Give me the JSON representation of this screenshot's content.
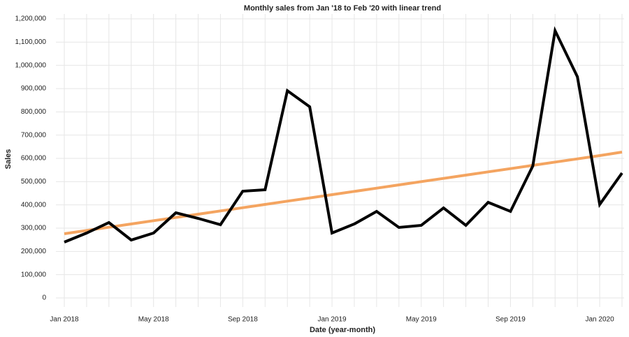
{
  "chart_data": {
    "type": "line",
    "title": "Monthly sales from Jan '18 to Feb '20 with linear trend",
    "xlabel": "Date (year-month)",
    "ylabel": "Sales",
    "x": [
      "2018-01",
      "2018-02",
      "2018-03",
      "2018-04",
      "2018-05",
      "2018-06",
      "2018-07",
      "2018-08",
      "2018-09",
      "2018-10",
      "2018-11",
      "2018-12",
      "2019-01",
      "2019-02",
      "2019-03",
      "2019-04",
      "2019-05",
      "2019-06",
      "2019-07",
      "2019-08",
      "2019-09",
      "2019-10",
      "2019-11",
      "2019-12",
      "2020-01",
      "2020-02"
    ],
    "series": [
      {
        "color": "#000000",
        "values": [
          240000,
          279000,
          324000,
          249000,
          279000,
          366000,
          342000,
          315000,
          459000,
          465000,
          891000,
          822000,
          279000,
          318000,
          372000,
          303000,
          312000,
          387000,
          312000,
          411000,
          372000,
          567000,
          1149000,
          951000,
          402000,
          537000
        ]
      },
      {
        "color": "#f4a460",
        "values": [
          276000,
          290000,
          304000,
          318000,
          332000,
          346000,
          360000,
          374000,
          388000,
          402000,
          416000,
          430000,
          444000,
          458000,
          472000,
          486000,
          500000,
          514000,
          528000,
          542000,
          556000,
          570000,
          584000,
          598000,
          612000,
          627000
        ]
      }
    ],
    "xticks": [
      {
        "value": "2018-01",
        "label": "Jan 2018"
      },
      {
        "value": "2018-05",
        "label": "May 2018"
      },
      {
        "value": "2018-09",
        "label": "Sep 2018"
      },
      {
        "value": "2019-01",
        "label": "Jan 2019"
      },
      {
        "value": "2019-05",
        "label": "May 2019"
      },
      {
        "value": "2019-09",
        "label": "Sep 2019"
      },
      {
        "value": "2020-01",
        "label": "Jan 2020"
      }
    ],
    "ylim": [
      0,
      1200000
    ],
    "yticks": [
      0,
      {
        "value": 100000,
        "label": "100,000"
      },
      {
        "value": 200000,
        "label": "200,000"
      },
      {
        "value": 300000,
        "label": "300,000"
      },
      {
        "value": 400000,
        "label": "400,000"
      },
      {
        "value": 500000,
        "label": "500,000"
      },
      {
        "value": 600000,
        "label": "600,000"
      },
      {
        "value": 700000,
        "label": "700,000"
      },
      {
        "value": 800000,
        "label": "800,000"
      },
      {
        "value": 900000,
        "label": "900,000"
      },
      {
        "value": 1000000,
        "label": "1,000,000"
      },
      {
        "value": 1100000,
        "label": "1,100,000"
      },
      {
        "value": 1200000,
        "label": "1,200,000"
      }
    ],
    "grid": true
  }
}
